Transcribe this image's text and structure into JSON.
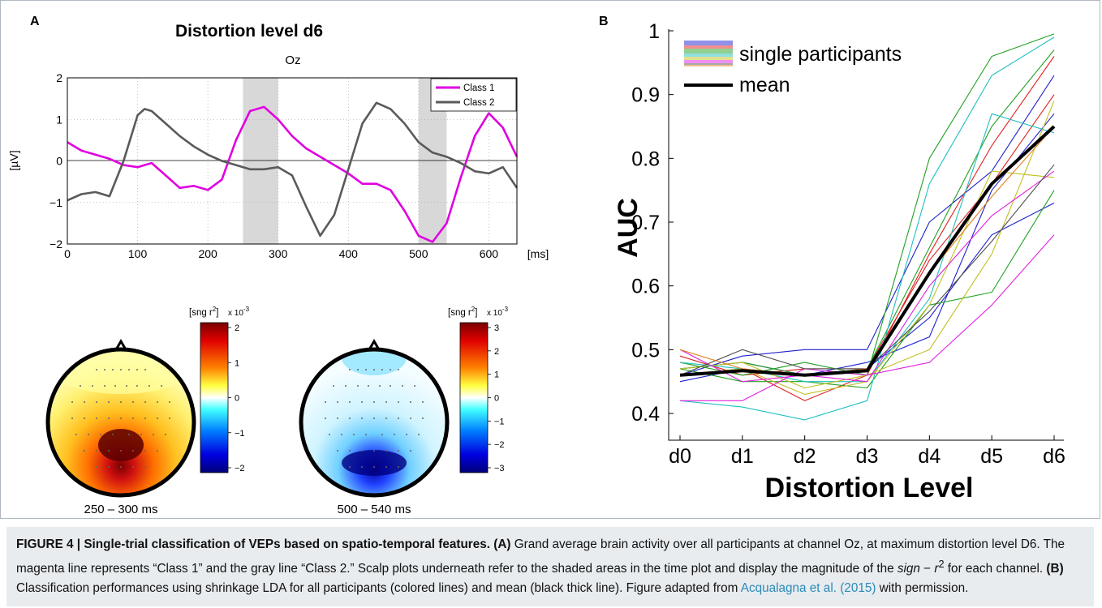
{
  "panelA": {
    "label": "A",
    "title": "Distortion level d6",
    "subtitle": "Oz",
    "ylabel": "[µV]",
    "xunit": "[ms]",
    "xticks": [
      "0",
      "100",
      "200",
      "300",
      "400",
      "500",
      "600"
    ],
    "yticks": [
      "2",
      "1",
      "0",
      "−1",
      "−2"
    ],
    "legend": [
      "Class 1",
      "Class 2"
    ]
  },
  "scalp": [
    {
      "unit": "[sng r",
      "sup": "2",
      "unitEnd": "]",
      "scale": "x 10",
      "scaleExp": "-3",
      "ticks": [
        "2",
        "1",
        "0",
        "−1",
        "−2"
      ],
      "time": "250 – 300 ms"
    },
    {
      "unit": "[sng r",
      "sup": "2",
      "unitEnd": "]",
      "scale": "x 10",
      "scaleExp": "-3",
      "ticks": [
        "3",
        "2",
        "1",
        "0",
        "−1",
        "−2",
        "−3"
      ],
      "time": "500 – 540 ms"
    }
  ],
  "panelB": {
    "label": "B",
    "ylabel": "AUC",
    "xlabel": "Distortion Level",
    "legend_single": "single participants",
    "legend_mean": "mean",
    "yticks": [
      "1",
      "0.9",
      "0.8",
      "0.7",
      "0.6",
      "0.5",
      "0.4"
    ],
    "xticks": [
      "d0",
      "d1",
      "d2",
      "d3",
      "d4",
      "d5",
      "d6"
    ]
  },
  "chart_data": [
    {
      "type": "line",
      "title": "Distortion level d6",
      "subtitle": "Oz",
      "xlabel": "[ms]",
      "ylabel": "[µV]",
      "xlim": [
        0,
        640
      ],
      "ylim": [
        -2,
        2
      ],
      "shaded_intervals": [
        [
          250,
          300
        ],
        [
          500,
          540
        ]
      ],
      "x": [
        0,
        20,
        40,
        60,
        80,
        100,
        110,
        120,
        140,
        160,
        180,
        200,
        220,
        240,
        260,
        280,
        300,
        320,
        340,
        360,
        380,
        400,
        420,
        440,
        460,
        480,
        500,
        520,
        540,
        560,
        580,
        600,
        620,
        640
      ],
      "series": [
        {
          "name": "Class 1",
          "color": "#e000e0",
          "values": [
            0.45,
            0.25,
            0.15,
            0.05,
            -0.1,
            -0.15,
            -0.1,
            -0.05,
            -0.35,
            -0.65,
            -0.6,
            -0.7,
            -0.45,
            0.5,
            1.2,
            1.3,
            1.0,
            0.6,
            0.3,
            0.1,
            -0.1,
            -0.3,
            -0.55,
            -0.55,
            -0.7,
            -1.2,
            -1.8,
            -1.95,
            -1.5,
            -0.4,
            0.6,
            1.15,
            0.8,
            0.1
          ]
        },
        {
          "name": "Class 2",
          "color": "#5a5a5a",
          "values": [
            -0.95,
            -0.8,
            -0.75,
            -0.85,
            0.0,
            1.1,
            1.25,
            1.2,
            0.9,
            0.6,
            0.35,
            0.15,
            0.0,
            -0.1,
            -0.2,
            -0.2,
            -0.15,
            -0.35,
            -1.1,
            -1.8,
            -1.3,
            -0.2,
            0.9,
            1.4,
            1.25,
            0.9,
            0.45,
            0.2,
            0.1,
            -0.05,
            -0.25,
            -0.3,
            -0.15,
            -0.65
          ]
        }
      ]
    },
    {
      "type": "line",
      "ylabel": "AUC",
      "xlabel": "Distortion Level",
      "categories": [
        "d0",
        "d1",
        "d2",
        "d3",
        "d4",
        "d5",
        "d6"
      ],
      "ylim": [
        0.38,
        1.0
      ],
      "series": [
        {
          "color": "#2020d0",
          "values": [
            0.46,
            0.49,
            0.5,
            0.5,
            0.7,
            0.78,
            0.93
          ]
        },
        {
          "color": "#2020d0",
          "values": [
            0.47,
            0.48,
            0.46,
            0.47,
            0.55,
            0.68,
            0.73
          ]
        },
        {
          "color": "#2020d0",
          "values": [
            0.45,
            0.47,
            0.46,
            0.48,
            0.52,
            0.75,
            0.87
          ]
        },
        {
          "color": "#e02020",
          "values": [
            0.46,
            0.47,
            0.42,
            0.46,
            0.65,
            0.82,
            0.96
          ]
        },
        {
          "color": "#e02020",
          "values": [
            0.49,
            0.46,
            0.47,
            0.47,
            0.64,
            0.76,
            0.9
          ]
        },
        {
          "color": "#20a020",
          "values": [
            0.48,
            0.46,
            0.48,
            0.46,
            0.8,
            0.96,
            0.995
          ]
        },
        {
          "color": "#20a020",
          "values": [
            0.47,
            0.45,
            0.45,
            0.44,
            0.57,
            0.59,
            0.75
          ]
        },
        {
          "color": "#20a020",
          "values": [
            0.47,
            0.48,
            0.46,
            0.47,
            0.66,
            0.85,
            0.97
          ]
        },
        {
          "color": "#20c0c0",
          "values": [
            0.42,
            0.41,
            0.39,
            0.42,
            0.76,
            0.93,
            0.99
          ]
        },
        {
          "color": "#20c0c0",
          "values": [
            0.48,
            0.47,
            0.45,
            0.45,
            0.58,
            0.87,
            0.84
          ]
        },
        {
          "color": "#c0c020",
          "values": [
            0.47,
            0.48,
            0.44,
            0.46,
            0.5,
            0.65,
            0.89
          ]
        },
        {
          "color": "#c0c020",
          "values": [
            0.46,
            0.47,
            0.43,
            0.45,
            0.57,
            0.78,
            0.77
          ]
        },
        {
          "color": "#e020e0",
          "values": [
            0.42,
            0.42,
            0.47,
            0.46,
            0.48,
            0.57,
            0.68
          ]
        },
        {
          "color": "#e020e0",
          "values": [
            0.5,
            0.45,
            0.46,
            0.45,
            0.6,
            0.71,
            0.78
          ]
        },
        {
          "color": "#505050",
          "values": [
            0.46,
            0.5,
            0.47,
            0.47,
            0.56,
            0.67,
            0.79
          ]
        },
        {
          "color": "#e08020",
          "values": [
            0.5,
            0.47,
            0.46,
            0.47,
            0.62,
            0.74,
            0.85
          ]
        },
        {
          "name": "mean",
          "color": "#000000",
          "values": [
            0.46,
            0.467,
            0.46,
            0.467,
            0.62,
            0.76,
            0.85
          ]
        }
      ]
    }
  ],
  "caption": {
    "figure": "FIGURE 4 | Single-trial classification of VEPs based on spatio-temporal features.",
    "a_label": "(A)",
    "a_text1": "Grand average brain activity over all participants at channel Oz, at maximum distortion level D6. The magenta line represents “Class 1” and the gray line “Class 2.” Scalp plots underneath refer to the shaded areas in the time plot and display the magnitude of the ",
    "a_sign": "sign",
    "a_minus": " − ",
    "a_r": "r",
    "a_exp": "2",
    "a_text2": " for each channel. ",
    "b_label": "(B)",
    "b_text1": "Classification performances using shrinkage LDA for all participants (colored lines) and mean (black thick line). Figure adapted from ",
    "b_ref": "Acqualagna et al. (2015)",
    "b_text2": " with permission."
  }
}
